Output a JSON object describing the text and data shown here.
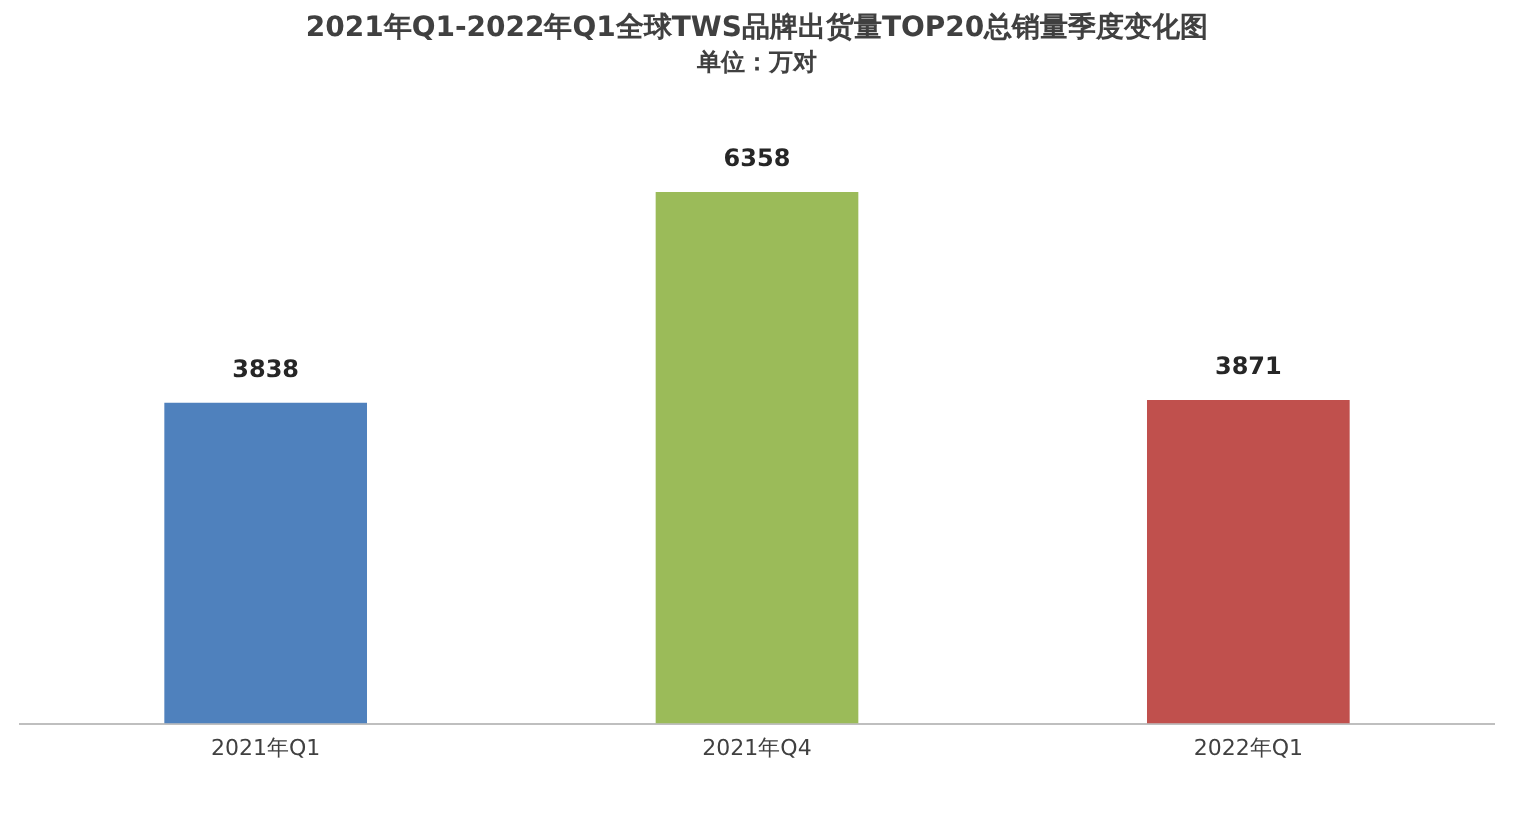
{
  "chart_data": {
    "type": "bar",
    "title": "2021年Q1-2022年Q1全球TWS品牌出货量TOP20总销量季度变化图",
    "subtitle": "单位：万对",
    "categories": [
      "2021年Q1",
      "2021年Q4",
      "2022年Q1"
    ],
    "values": [
      3838,
      6358,
      3871
    ],
    "colors": [
      "#4f81bd",
      "#9bbb59",
      "#c0504d"
    ],
    "data_labels": true,
    "grid": false,
    "legend": false,
    "tick_labels": "x"
  }
}
